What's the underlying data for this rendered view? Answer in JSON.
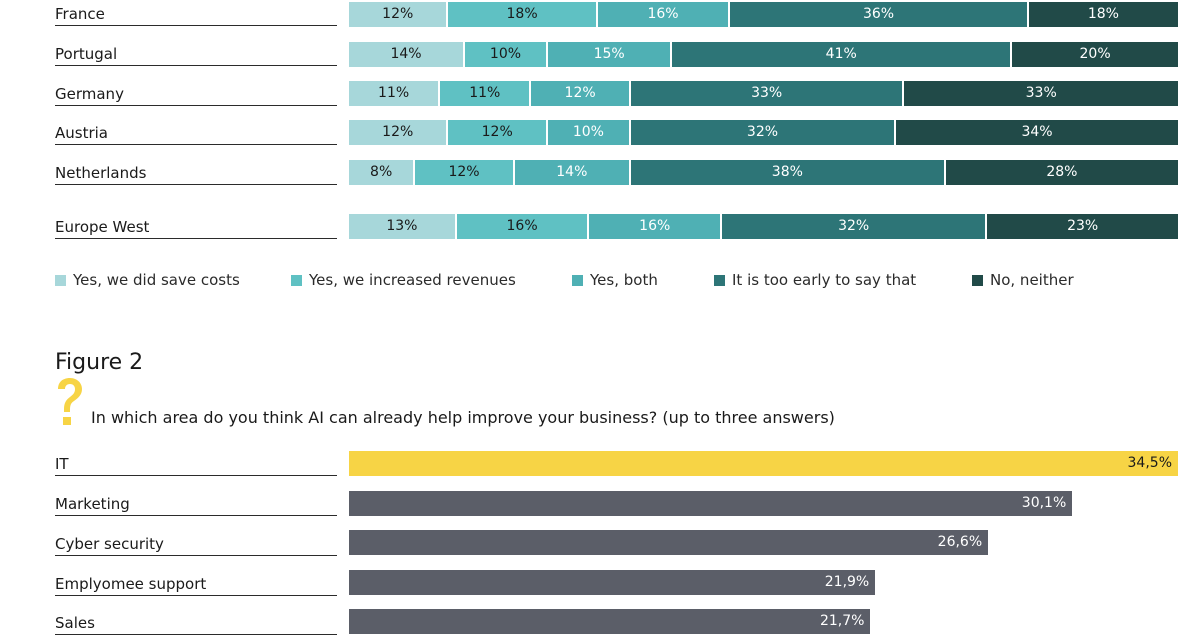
{
  "chart_data": [
    {
      "type": "bar",
      "orientation": "horizontal",
      "stacked": true,
      "categories": [
        "France",
        "Portugal",
        "Germany",
        "Austria",
        "Netherlands",
        "Europe West"
      ],
      "series": [
        {
          "name": "Yes, we did save costs",
          "color": "#a7d7da",
          "values": [
            12,
            14,
            11,
            12,
            8,
            13
          ]
        },
        {
          "name": "Yes, we increased revenues",
          "color": "#5fc1c3",
          "values": [
            18,
            10,
            11,
            12,
            12,
            16
          ]
        },
        {
          "name": "Yes, both",
          "color": "#4fb0b4",
          "values": [
            16,
            15,
            12,
            10,
            14,
            16
          ]
        },
        {
          "name": "It is too early to say that",
          "color": "#2d7577",
          "values": [
            36,
            41,
            33,
            32,
            38,
            32
          ]
        },
        {
          "name": "No, neither",
          "color": "#214a48",
          "values": [
            18,
            20,
            33,
            34,
            28,
            23
          ]
        }
      ],
      "value_suffix": "%",
      "xlim": [
        0,
        100
      ],
      "legend_position": "bottom"
    },
    {
      "title": "Figure 2",
      "subtitle": "In which area do you think AI can already help improve your business? (up to three answers)",
      "type": "bar",
      "orientation": "horizontal",
      "categories": [
        "IT",
        "Marketing",
        "Cyber security",
        "Emplyomee support",
        "Sales"
      ],
      "values": [
        34.5,
        30.1,
        26.6,
        21.9,
        21.7
      ],
      "value_labels": [
        "34,5%",
        "30,1%",
        "26,6%",
        "21,9%",
        "21,7%"
      ],
      "highlight_color": "#f7d445",
      "bar_color": "#5b5e68",
      "xlim": [
        0,
        34.5
      ]
    }
  ]
}
